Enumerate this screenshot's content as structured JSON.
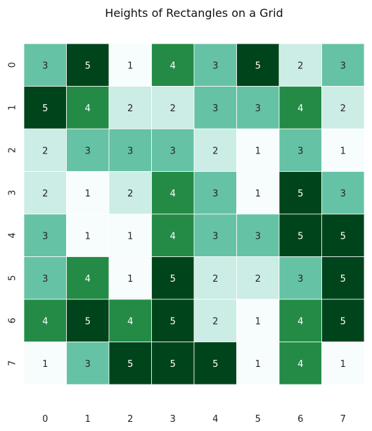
{
  "chart_data": {
    "type": "heatmap",
    "title": "Heights of Rectangles on a Grid",
    "xlabel": "",
    "ylabel": "",
    "x_categories": [
      "0",
      "1",
      "2",
      "3",
      "4",
      "5",
      "6",
      "7"
    ],
    "y_categories": [
      "0",
      "1",
      "2",
      "3",
      "4",
      "5",
      "6",
      "7"
    ],
    "values": [
      [
        3,
        5,
        1,
        4,
        3,
        5,
        2,
        3
      ],
      [
        5,
        4,
        2,
        2,
        3,
        3,
        4,
        2
      ],
      [
        2,
        3,
        3,
        3,
        2,
        1,
        3,
        1
      ],
      [
        2,
        1,
        2,
        4,
        3,
        1,
        5,
        3
      ],
      [
        3,
        1,
        1,
        4,
        3,
        3,
        5,
        5
      ],
      [
        3,
        4,
        1,
        5,
        2,
        2,
        3,
        5
      ],
      [
        4,
        5,
        4,
        5,
        2,
        1,
        4,
        5
      ],
      [
        1,
        3,
        5,
        5,
        5,
        1,
        4,
        1
      ]
    ],
    "value_range": [
      1,
      5
    ],
    "colormap": "BuGn",
    "color_scale": {
      "1": "#f7fcfd",
      "2": "#ccece6",
      "3": "#66c2a4",
      "4": "#238b45",
      "5": "#00441b"
    },
    "text_color_light": "#ffffff",
    "text_color_dark": "#262626",
    "annotations": true,
    "colorbar": false,
    "grid_line_color": "#ffffff"
  }
}
